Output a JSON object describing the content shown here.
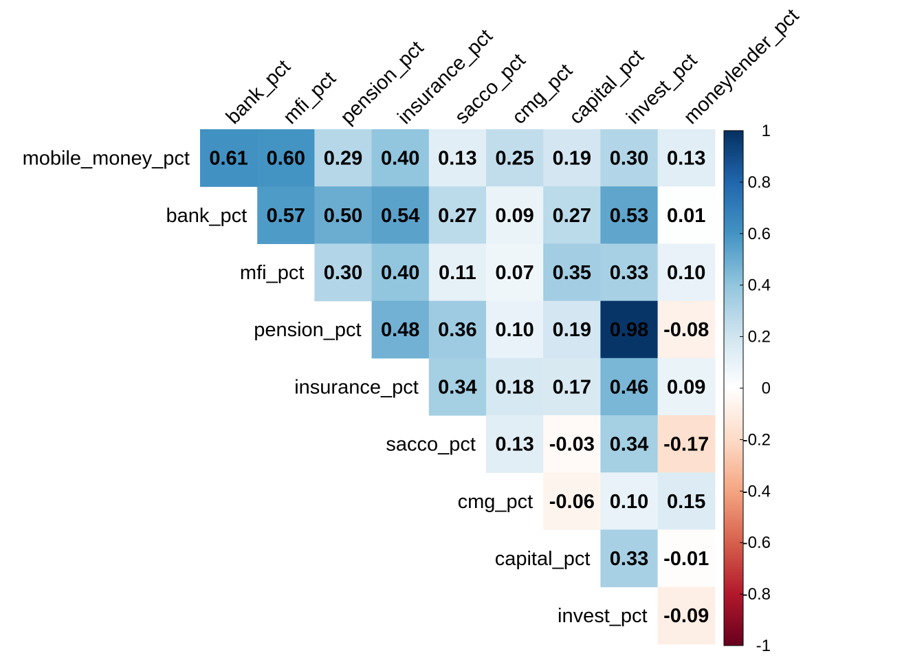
{
  "chart_data": {
    "type": "heatmap",
    "variables": [
      "mobile_money_pct",
      "bank_pct",
      "mfi_pct",
      "pension_pct",
      "insurance_pct",
      "sacco_pct",
      "cmg_pct",
      "capital_pct",
      "invest_pct",
      "moneylender_pct"
    ],
    "row_labels": [
      "mobile_money_pct",
      "bank_pct",
      "mfi_pct",
      "pension_pct",
      "insurance_pct",
      "sacco_pct",
      "cmg_pct",
      "capital_pct",
      "invest_pct"
    ],
    "column_labels": [
      "bank_pct",
      "mfi_pct",
      "pension_pct",
      "insurance_pct",
      "sacco_pct",
      "cmg_pct",
      "capital_pct",
      "invest_pct",
      "moneylender_pct"
    ],
    "matrix": [
      [
        0.61,
        0.6,
        0.29,
        0.4,
        0.13,
        0.25,
        0.19,
        0.3,
        0.13
      ],
      [
        null,
        0.57,
        0.5,
        0.54,
        0.27,
        0.09,
        0.27,
        0.53,
        0.01
      ],
      [
        null,
        null,
        0.3,
        0.4,
        0.11,
        0.07,
        0.35,
        0.33,
        0.1
      ],
      [
        null,
        null,
        null,
        0.48,
        0.36,
        0.1,
        0.19,
        0.98,
        -0.08
      ],
      [
        null,
        null,
        null,
        null,
        0.34,
        0.18,
        0.17,
        0.46,
        0.09
      ],
      [
        null,
        null,
        null,
        null,
        null,
        0.13,
        -0.03,
        0.34,
        -0.17
      ],
      [
        null,
        null,
        null,
        null,
        null,
        null,
        -0.06,
        0.1,
        0.15
      ],
      [
        null,
        null,
        null,
        null,
        null,
        null,
        null,
        0.33,
        -0.01
      ],
      [
        null,
        null,
        null,
        null,
        null,
        null,
        null,
        null,
        -0.09
      ]
    ],
    "value_format": "2 decimals",
    "color_scale": {
      "min": -1,
      "max": 1,
      "colors": [
        "#67001F",
        "#B2182B",
        "#D6604D",
        "#F4A582",
        "#FDDBC7",
        "#FFFFFF",
        "#D1E5F0",
        "#92C5DE",
        "#4393C3",
        "#2166AC",
        "#053061"
      ],
      "ticks": [
        "1",
        "0.8",
        "0.6",
        "0.4",
        "0.2",
        "0",
        "-0.2",
        "-0.4",
        "-0.6",
        "-0.8",
        "-1"
      ]
    },
    "legend_position": "right",
    "grid": false
  }
}
